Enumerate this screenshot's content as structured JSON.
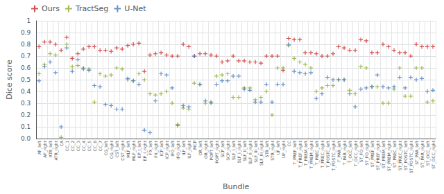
{
  "chart_data": {
    "type": "scatter",
    "xlabel": "Bundle",
    "ylabel": "Dice score",
    "categories": [
      "AF_left",
      "AF_right",
      "ATR_left",
      "ATR_right",
      "CA",
      "CC_1",
      "CC_2",
      "CC_3",
      "CC_4",
      "CC_5",
      "CC_6",
      "CC_7",
      "CG_left",
      "CG_right",
      "CST_left",
      "CST_right",
      "MLF_left",
      "MLF_right",
      "EP_I_left",
      "EP_I_right",
      "FX_left",
      "FX_right",
      "ICP_left",
      "ICP_right",
      "IFO_left",
      "IFO_right",
      "ILF_left",
      "ILF_right",
      "MCP",
      "OR_left",
      "OR_right",
      "POPT_left",
      "POPT_right",
      "SCP_left",
      "SCP_right",
      "SLF_I_left",
      "SLF_I_right",
      "SLF_II_left",
      "SLF_II_right",
      "SLF_III_left",
      "SLF_III_right",
      "STR_left",
      "STR_right",
      "UF_left",
      "UF_right",
      "CC",
      "T_PREF_left",
      "T_PREF_right",
      "T_PREM_left",
      "T_PREM_right",
      "T_PREC_left",
      "T_PREC_right",
      "T_POSTC_left",
      "T_POSTC_right",
      "T_PAR_left",
      "T_PAR_right",
      "T_OCC_left",
      "T_OCC_right",
      "ST_FO_left",
      "ST_FO_right",
      "ST_PREF_left",
      "ST_PREF_right",
      "ST_PREM_left",
      "ST_PREM_right",
      "ST_PREC_left",
      "ST_PREC_right",
      "ST_POSTC_left",
      "ST_POSTC_right",
      "ST_PAR_left",
      "ST_PAR_right",
      "ST_OCC_left",
      "ST_OCC_right"
    ],
    "series": [
      {
        "name": "Ours",
        "color": "#cc2222",
        "values": [
          0.78,
          0.82,
          0.82,
          0.8,
          0.75,
          0.86,
          0.68,
          0.72,
          0.76,
          0.78,
          0.78,
          0.75,
          0.75,
          0.74,
          0.77,
          0.76,
          0.79,
          0.8,
          0.81,
          0.57,
          0.71,
          0.72,
          0.73,
          0.71,
          0.7,
          0.7,
          0.8,
          0.78,
          0.7,
          0.72,
          0.72,
          0.71,
          0.7,
          0.65,
          0.66,
          0.7,
          0.66,
          0.66,
          0.65,
          0.65,
          0.64,
          0.7,
          0.7,
          0.7,
          0.58,
          0.85,
          0.84,
          0.84,
          0.73,
          0.73,
          0.72,
          0.7,
          0.7,
          0.72,
          0.78,
          0.77,
          0.75,
          0.75,
          0.84,
          0.83,
          0.73,
          0.73,
          0.8,
          0.78,
          0.75,
          0.73,
          0.73,
          0.7,
          0.8,
          0.78,
          0.78,
          0.78
        ]
      },
      {
        "name": "TractSeg",
        "color": "#88aa22",
        "values": [
          0.55,
          0.63,
          0.72,
          0.71,
          0.01,
          0.8,
          0.61,
          0.62,
          0.6,
          0.59,
          0.31,
          0.55,
          0.53,
          0.54,
          0.6,
          0.59,
          0.5,
          0.49,
          0.55,
          0.5,
          0.38,
          0.37,
          0.38,
          0.4,
          0.3,
          0.12,
          0.26,
          0.25,
          0.47,
          0.46,
          0.3,
          0.3,
          0.53,
          0.54,
          0.55,
          0.35,
          0.35,
          0.43,
          0.43,
          0.33,
          0.35,
          0.4,
          0.2,
          0.6,
          0.6,
          0.79,
          0.68,
          0.65,
          0.63,
          0.6,
          0.4,
          0.43,
          0.45,
          0.45,
          0.5,
          0.5,
          0.41,
          0.38,
          0.61,
          0.6,
          0.44,
          0.44,
          0.3,
          0.3,
          0.42,
          0.6,
          0.36,
          0.36,
          0.6,
          0.6,
          0.31,
          0.32
        ]
      },
      {
        "name": "U-Net",
        "color": "#4477bb",
        "values": [
          0.49,
          0.61,
          0.65,
          0.56,
          0.1,
          0.77,
          0.57,
          0.67,
          0.59,
          0.58,
          0.45,
          0.44,
          0.29,
          0.28,
          0.25,
          0.25,
          0.51,
          0.49,
          0.46,
          0.07,
          0.05,
          0.32,
          0.55,
          0.54,
          0.43,
          0.11,
          0.28,
          0.27,
          0.7,
          0.46,
          0.32,
          0.31,
          0.46,
          0.49,
          0.49,
          0.53,
          0.53,
          0.42,
          0.41,
          0.31,
          0.31,
          0.46,
          0.31,
          0.46,
          0.46,
          0.8,
          0.57,
          0.56,
          0.55,
          0.56,
          0.34,
          0.38,
          0.52,
          0.5,
          0.5,
          0.5,
          0.38,
          0.27,
          0.42,
          0.43,
          0.44,
          0.54,
          0.44,
          0.43,
          0.44,
          0.52,
          0.43,
          0.52,
          0.5,
          0.51,
          0.4,
          0.41
        ]
      }
    ],
    "ylim": [
      0,
      1.0
    ],
    "yticks": [
      {
        "value": 0,
        "label": "0.0"
      },
      0.1,
      0.2,
      0.3,
      0.4,
      0.5,
      0.6,
      0.7,
      0.8,
      0.9,
      1
    ],
    "marker": "plus",
    "grid": true,
    "legend": "upper left"
  }
}
